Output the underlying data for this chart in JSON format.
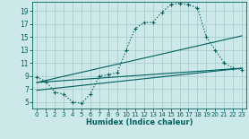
{
  "xlabel": "Humidex (Indice chaleur)",
  "bg_color": "#cce8e8",
  "grid_color": "#aacfcf",
  "line_color": "#006060",
  "xlim": [
    -0.5,
    23.5
  ],
  "ylim": [
    4.0,
    20.5
  ],
  "xticks": [
    0,
    1,
    2,
    3,
    4,
    5,
    6,
    7,
    8,
    9,
    10,
    11,
    12,
    13,
    14,
    15,
    16,
    17,
    18,
    19,
    20,
    21,
    22,
    23
  ],
  "yticks": [
    5,
    7,
    9,
    11,
    13,
    15,
    17,
    19
  ],
  "curve_main_x": [
    0,
    1,
    2,
    3,
    4,
    5,
    6,
    7,
    8,
    9,
    10,
    11,
    12,
    13,
    14,
    15,
    16,
    17,
    18,
    19,
    20,
    21,
    22,
    23
  ],
  "curve_main_y": [
    8.8,
    8.2,
    6.5,
    6.2,
    5.0,
    4.8,
    6.2,
    9.0,
    9.2,
    9.5,
    13.0,
    16.3,
    17.2,
    17.3,
    18.8,
    20.0,
    20.2,
    20.0,
    19.5,
    15.0,
    13.0,
    11.0,
    10.2,
    10.0
  ],
  "line1_x": [
    0,
    23
  ],
  "line1_y": [
    6.8,
    10.2
  ],
  "line2_x": [
    0,
    23
  ],
  "line2_y": [
    8.0,
    15.2
  ],
  "line3_x": [
    0,
    23
  ],
  "line3_y": [
    8.0,
    10.2
  ]
}
